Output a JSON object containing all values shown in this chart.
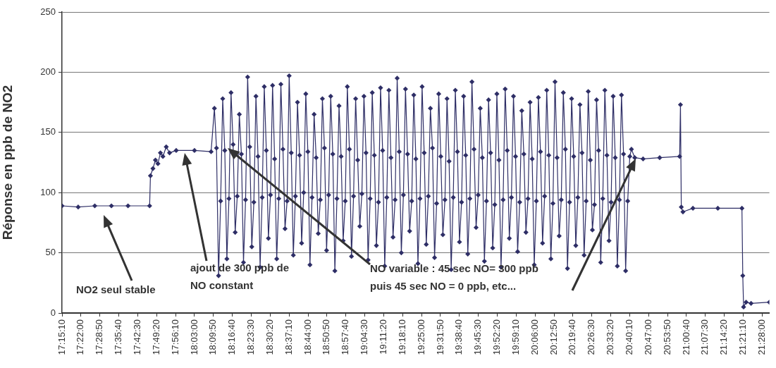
{
  "chart_data": {
    "type": "line",
    "ylabel": "Réponse en ppb de NO2",
    "color": "#2e2e66",
    "marker": "diamond",
    "grid": "y",
    "legend": false,
    "xlim": [
      17.2528,
      21.51
    ],
    "ylim": [
      0,
      250
    ],
    "yticks": [
      0,
      50,
      100,
      150,
      200,
      250
    ],
    "xticks": [
      {
        "value": 17.2528,
        "label": "17:15:10"
      },
      {
        "value": 17.3667,
        "label": "17:22:00"
      },
      {
        "value": 17.4806,
        "label": "17:28:50"
      },
      {
        "value": 17.5944,
        "label": "17:35:40"
      },
      {
        "value": 17.7083,
        "label": "17:42:30"
      },
      {
        "value": 17.8222,
        "label": "17:49:20"
      },
      {
        "value": 17.9361,
        "label": "17:56:10"
      },
      {
        "value": 18.05,
        "label": "18:03:00"
      },
      {
        "value": 18.1639,
        "label": "18:09:50"
      },
      {
        "value": 18.2778,
        "label": "18:16:40"
      },
      {
        "value": 18.3917,
        "label": "18:23:30"
      },
      {
        "value": 18.5056,
        "label": "18:30:20"
      },
      {
        "value": 18.6194,
        "label": "18:37:10"
      },
      {
        "value": 18.7333,
        "label": "18:44:00"
      },
      {
        "value": 18.8472,
        "label": "18:50:50"
      },
      {
        "value": 18.9611,
        "label": "18:57:40"
      },
      {
        "value": 19.075,
        "label": "19:04:30"
      },
      {
        "value": 19.1889,
        "label": "19:11:20"
      },
      {
        "value": 19.3028,
        "label": "19:18:10"
      },
      {
        "value": 19.4167,
        "label": "19:25:00"
      },
      {
        "value": 19.5306,
        "label": "19:31:50"
      },
      {
        "value": 19.6444,
        "label": "19:38:40"
      },
      {
        "value": 19.7583,
        "label": "19:45:30"
      },
      {
        "value": 19.8722,
        "label": "19:52:20"
      },
      {
        "value": 19.9861,
        "label": "19:59:10"
      },
      {
        "value": 20.1,
        "label": "20:06:00"
      },
      {
        "value": 20.2139,
        "label": "20:12:50"
      },
      {
        "value": 20.3278,
        "label": "20:19:40"
      },
      {
        "value": 20.4417,
        "label": "20:26:30"
      },
      {
        "value": 20.5556,
        "label": "20:33:20"
      },
      {
        "value": 20.6694,
        "label": "20:40:10"
      },
      {
        "value": 20.7833,
        "label": "20:47:00"
      },
      {
        "value": 20.8972,
        "label": "20:53:50"
      },
      {
        "value": 21.0111,
        "label": "21:00:40"
      },
      {
        "value": 21.125,
        "label": "21:07:30"
      },
      {
        "value": 21.2389,
        "label": "21:14:20"
      },
      {
        "value": 21.3528,
        "label": "21:21:10"
      },
      {
        "value": 21.4667,
        "label": "21:28:00"
      }
    ],
    "x": [
      17.2528,
      17.35,
      17.45,
      17.55,
      17.65,
      17.78,
      17.785,
      17.8,
      17.815,
      17.83,
      17.845,
      17.86,
      17.88,
      17.9,
      17.94,
      18.05,
      18.15,
      18.17,
      18.1825,
      18.195,
      18.2075,
      18.22,
      18.2325,
      18.245,
      18.2575,
      18.27,
      18.2825,
      18.295,
      18.3075,
      18.32,
      18.3325,
      18.345,
      18.3575,
      18.37,
      18.3825,
      18.395,
      18.4075,
      18.42,
      18.4325,
      18.445,
      18.4575,
      18.47,
      18.4825,
      18.495,
      18.5075,
      18.52,
      18.5325,
      18.545,
      18.5575,
      18.57,
      18.5825,
      18.595,
      18.6075,
      18.62,
      18.6325,
      18.645,
      18.6575,
      18.67,
      18.6825,
      18.695,
      18.7075,
      18.72,
      18.7325,
      18.745,
      18.7575,
      18.77,
      18.7825,
      18.795,
      18.8075,
      18.82,
      18.8325,
      18.845,
      18.8575,
      18.87,
      18.8825,
      18.895,
      18.9075,
      18.92,
      18.9325,
      18.945,
      18.9575,
      18.97,
      18.9825,
      18.995,
      19.0075,
      19.02,
      19.0325,
      19.045,
      19.0575,
      19.07,
      19.0825,
      19.095,
      19.1075,
      19.12,
      19.1325,
      19.145,
      19.1575,
      19.17,
      19.1825,
      19.195,
      19.2075,
      19.22,
      19.2325,
      19.245,
      19.2575,
      19.27,
      19.2825,
      19.295,
      19.3075,
      19.32,
      19.3325,
      19.345,
      19.3575,
      19.37,
      19.3825,
      19.395,
      19.4075,
      19.42,
      19.4325,
      19.445,
      19.4575,
      19.47,
      19.4825,
      19.495,
      19.5075,
      19.52,
      19.5325,
      19.545,
      19.5575,
      19.57,
      19.5825,
      19.595,
      19.6075,
      19.62,
      19.6325,
      19.645,
      19.6575,
      19.67,
      19.6825,
      19.695,
      19.7075,
      19.72,
      19.7325,
      19.745,
      19.7575,
      19.77,
      19.7825,
      19.795,
      19.8075,
      19.82,
      19.8325,
      19.845,
      19.8575,
      19.87,
      19.8825,
      19.895,
      19.9075,
      19.92,
      19.9325,
      19.945,
      19.9575,
      19.97,
      19.9825,
      19.995,
      20.0075,
      20.02,
      20.0325,
      20.045,
      20.0575,
      20.07,
      20.0825,
      20.095,
      20.1075,
      20.12,
      20.1325,
      20.145,
      20.1575,
      20.17,
      20.1825,
      20.195,
      20.2075,
      20.22,
      20.2325,
      20.245,
      20.2575,
      20.27,
      20.2825,
      20.295,
      20.3075,
      20.32,
      20.3325,
      20.345,
      20.3575,
      20.37,
      20.3825,
      20.395,
      20.4075,
      20.42,
      20.4325,
      20.445,
      20.4575,
      20.47,
      20.4825,
      20.495,
      20.5075,
      20.52,
      20.5325,
      20.545,
      20.5575,
      20.57,
      20.5825,
      20.595,
      20.6075,
      20.62,
      20.6325,
      20.645,
      20.6575,
      20.67,
      20.68,
      20.7,
      20.75,
      20.85,
      20.97,
      20.975,
      20.98,
      20.99,
      21.05,
      21.2,
      21.345,
      21.35,
      21.355,
      21.37,
      21.4,
      21.51
    ],
    "values": [
      89,
      88,
      89,
      89,
      89,
      89,
      114,
      120,
      127,
      124,
      133,
      130,
      138,
      133,
      135,
      135,
      134,
      170,
      137,
      31,
      93,
      178,
      135,
      45,
      95,
      183,
      140,
      67,
      97,
      165,
      132,
      42,
      94,
      196,
      138,
      55,
      92,
      180,
      130,
      38,
      96,
      188,
      135,
      62,
      98,
      189,
      128,
      45,
      95,
      190,
      136,
      70,
      93,
      197,
      133,
      48,
      97,
      175,
      131,
      58,
      100,
      182,
      134,
      40,
      96,
      165,
      129,
      66,
      94,
      178,
      137,
      52,
      98,
      180,
      132,
      35,
      95,
      172,
      130,
      60,
      93,
      188,
      136,
      47,
      97,
      178,
      127,
      72,
      99,
      180,
      133,
      44,
      95,
      183,
      131,
      56,
      92,
      187,
      135,
      39,
      96,
      185,
      129,
      63,
      94,
      195,
      134,
      50,
      98,
      186,
      132,
      68,
      93,
      181,
      128,
      41,
      95,
      188,
      133,
      57,
      97,
      170,
      137,
      46,
      91,
      182,
      130,
      65,
      94,
      178,
      126,
      36,
      96,
      185,
      134,
      59,
      92,
      180,
      131,
      49,
      95,
      192,
      136,
      71,
      98,
      170,
      129,
      43,
      93,
      177,
      133,
      54,
      90,
      182,
      127,
      38,
      94,
      186,
      135,
      62,
      96,
      180,
      130,
      51,
      92,
      168,
      132,
      67,
      95,
      175,
      128,
      40,
      93,
      179,
      134,
      58,
      97,
      185,
      131,
      45,
      91,
      192,
      129,
      64,
      94,
      183,
      136,
      37,
      92,
      178,
      130,
      56,
      96,
      173,
      133,
      48,
      93,
      184,
      127,
      69,
      90,
      177,
      135,
      42,
      95,
      185,
      131,
      60,
      92,
      180,
      129,
      39,
      94,
      181,
      132,
      35,
      93,
      130,
      136,
      129,
      128,
      129,
      130,
      173,
      88,
      84,
      87,
      87,
      87,
      31,
      5,
      9,
      8,
      9
    ],
    "annotations": [
      "NO2 seul stable",
      "ajout de 300 ppb de\nNO constant",
      "NO variable : 45 sec NO= 300 ppb",
      "puis 45 sec NO = 0 ppb, etc..."
    ]
  }
}
